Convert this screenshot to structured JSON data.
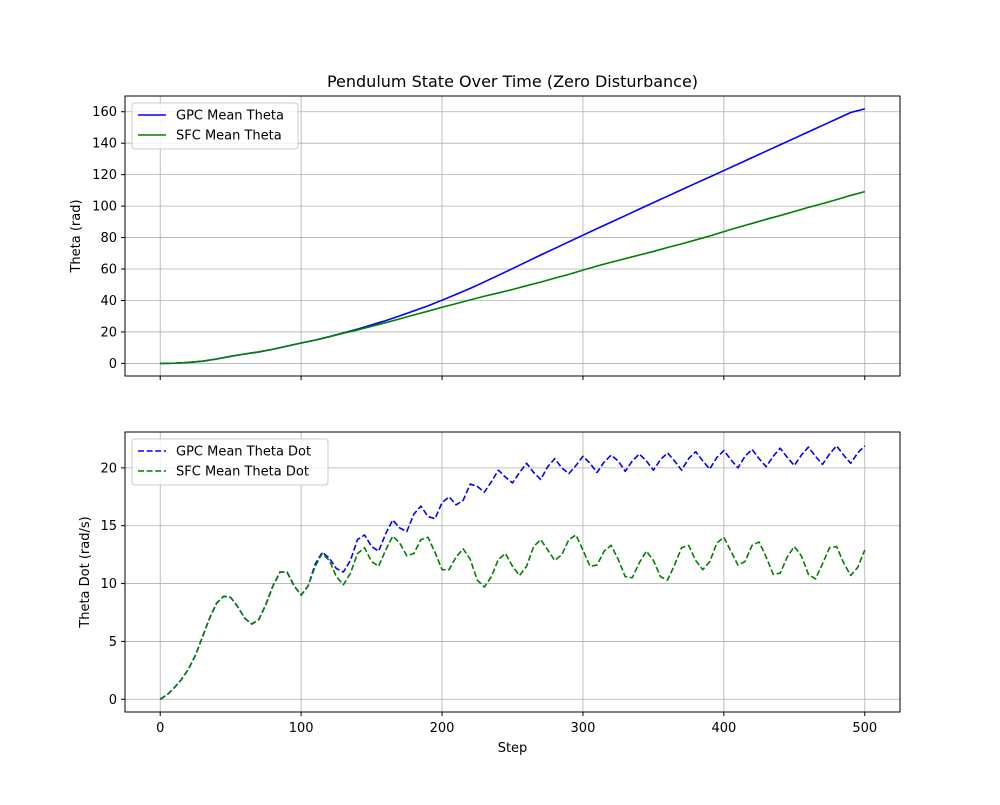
{
  "figure": {
    "title": "Pendulum State Over Time (Zero Disturbance)",
    "background": "#ffffff"
  },
  "colors": {
    "gpc": "#0000ff",
    "sfc": "#008000",
    "grid": "#b0b0b0",
    "axes": "#000000"
  },
  "chart_data": [
    {
      "type": "line",
      "title": "Pendulum State Over Time (Zero Disturbance)",
      "xlabel": "",
      "ylabel": "Theta (rad)",
      "xlim": [
        -25,
        525
      ],
      "ylim": [
        -8,
        170
      ],
      "x_ticks": [
        0,
        100,
        200,
        300,
        400,
        500
      ],
      "y_ticks": [
        0,
        20,
        40,
        60,
        80,
        100,
        120,
        140,
        160
      ],
      "show_x_tick_labels": false,
      "grid": true,
      "legend": "upper-left",
      "series": [
        {
          "name": "GPC Mean Theta",
          "style": "solid",
          "color": "#0000ff",
          "x": [
            0,
            10,
            20,
            30,
            40,
            50,
            60,
            70,
            80,
            90,
            100,
            110,
            120,
            130,
            140,
            150,
            160,
            170,
            180,
            190,
            200,
            210,
            220,
            230,
            240,
            250,
            260,
            270,
            280,
            290,
            300,
            310,
            320,
            330,
            340,
            350,
            360,
            370,
            380,
            390,
            400,
            410,
            420,
            430,
            440,
            450,
            460,
            470,
            480,
            490,
            500
          ],
          "y": [
            0,
            0.1,
            0.6,
            1.4,
            2.8,
            4.5,
            6.0,
            7.3,
            9.0,
            11.0,
            13.0,
            14.8,
            17.0,
            19.4,
            21.8,
            24.5,
            27.2,
            30.2,
            33.4,
            36.6,
            40.2,
            43.9,
            47.7,
            51.8,
            56.0,
            60.3,
            64.6,
            68.9,
            73.1,
            77.3,
            81.5,
            85.7,
            89.8,
            93.9,
            98.1,
            102.2,
            106.3,
            110.4,
            114.5,
            118.5,
            122.6,
            126.7,
            130.8,
            134.9,
            139.0,
            143.1,
            147.2,
            151.3,
            155.4,
            159.5,
            161.8
          ]
        },
        {
          "name": "SFC Mean Theta",
          "style": "solid",
          "color": "#008000",
          "x": [
            0,
            10,
            20,
            30,
            40,
            50,
            60,
            70,
            80,
            90,
            100,
            110,
            120,
            130,
            140,
            150,
            160,
            170,
            180,
            190,
            200,
            210,
            220,
            230,
            240,
            250,
            260,
            270,
            280,
            290,
            300,
            310,
            320,
            330,
            340,
            350,
            360,
            370,
            380,
            390,
            400,
            410,
            420,
            430,
            440,
            450,
            460,
            470,
            480,
            490,
            500
          ],
          "y": [
            0,
            0.1,
            0.6,
            1.4,
            2.8,
            4.5,
            6.0,
            7.3,
            9.0,
            11.0,
            13.0,
            14.8,
            17.0,
            19.2,
            21.3,
            23.6,
            25.9,
            28.3,
            30.8,
            33.2,
            35.7,
            38.0,
            40.4,
            42.7,
            44.8,
            47.0,
            49.4,
            51.7,
            54.2,
            56.6,
            59.3,
            61.9,
            64.3,
            66.6,
            68.9,
            71.2,
            73.7,
            76.0,
            78.5,
            81.0,
            83.8,
            86.5,
            89.0,
            91.6,
            94.0,
            96.6,
            99.2,
            101.6,
            104.1,
            106.8,
            109.2
          ]
        }
      ]
    },
    {
      "type": "line",
      "title": "",
      "xlabel": "Step",
      "ylabel": "Theta Dot (rad/s)",
      "xlim": [
        -25,
        525
      ],
      "ylim": [
        -1.1,
        23.1
      ],
      "x_ticks": [
        0,
        100,
        200,
        300,
        400,
        500
      ],
      "y_ticks": [
        0,
        5,
        10,
        15,
        20
      ],
      "show_x_tick_labels": true,
      "grid": true,
      "legend": "upper-left",
      "series": [
        {
          "name": "GPC Mean Theta Dot",
          "style": "dashed",
          "color": "#0000ff",
          "x": [
            0,
            5,
            10,
            15,
            20,
            25,
            30,
            35,
            40,
            45,
            50,
            55,
            60,
            65,
            70,
            75,
            80,
            85,
            90,
            95,
            100,
            105,
            110,
            115,
            120,
            125,
            130,
            135,
            140,
            145,
            150,
            155,
            160,
            165,
            170,
            175,
            180,
            185,
            190,
            195,
            200,
            205,
            210,
            215,
            220,
            225,
            230,
            235,
            240,
            245,
            250,
            255,
            260,
            265,
            270,
            275,
            280,
            285,
            290,
            295,
            300,
            305,
            310,
            315,
            320,
            325,
            330,
            335,
            340,
            345,
            350,
            355,
            360,
            365,
            370,
            375,
            380,
            385,
            390,
            395,
            400,
            405,
            410,
            415,
            420,
            425,
            430,
            435,
            440,
            445,
            450,
            455,
            460,
            465,
            470,
            475,
            480,
            485,
            490,
            495,
            500
          ],
          "y": [
            0,
            0.4,
            1.0,
            1.7,
            2.6,
            3.8,
            5.4,
            7.0,
            8.3,
            8.9,
            8.8,
            8.0,
            7.0,
            6.5,
            6.9,
            8.2,
            9.8,
            11.0,
            11.0,
            9.8,
            9.0,
            9.8,
            11.7,
            12.7,
            12.2,
            11.3,
            11.0,
            12.0,
            13.8,
            14.2,
            13.2,
            12.8,
            14.3,
            15.5,
            14.8,
            14.5,
            16.0,
            16.7,
            15.8,
            15.6,
            17.0,
            17.5,
            16.8,
            17.2,
            18.6,
            18.4,
            17.9,
            18.8,
            19.8,
            19.2,
            18.7,
            19.6,
            20.4,
            19.6,
            19.0,
            20.1,
            20.8,
            20.0,
            19.5,
            20.2,
            21.0,
            20.4,
            19.6,
            20.5,
            21.1,
            20.6,
            19.7,
            20.6,
            21.2,
            20.6,
            19.8,
            20.7,
            21.3,
            20.6,
            19.8,
            20.8,
            21.4,
            20.6,
            19.9,
            20.9,
            21.5,
            20.7,
            20.0,
            21.0,
            21.6,
            20.8,
            20.1,
            21.0,
            21.7,
            20.9,
            20.2,
            21.1,
            21.8,
            21.0,
            20.3,
            21.2,
            21.9,
            21.1,
            20.4,
            21.3,
            21.9
          ]
        },
        {
          "name": "SFC Mean Theta Dot",
          "style": "dashed",
          "color": "#008000",
          "x": [
            0,
            5,
            10,
            15,
            20,
            25,
            30,
            35,
            40,
            45,
            50,
            55,
            60,
            65,
            70,
            75,
            80,
            85,
            90,
            95,
            100,
            105,
            110,
            115,
            120,
            125,
            130,
            135,
            140,
            145,
            150,
            155,
            160,
            165,
            170,
            175,
            180,
            185,
            190,
            195,
            200,
            205,
            210,
            215,
            220,
            225,
            230,
            235,
            240,
            245,
            250,
            255,
            260,
            265,
            270,
            275,
            280,
            285,
            290,
            295,
            300,
            305,
            310,
            315,
            320,
            325,
            330,
            335,
            340,
            345,
            350,
            355,
            360,
            365,
            370,
            375,
            380,
            385,
            390,
            395,
            400,
            405,
            410,
            415,
            420,
            425,
            430,
            435,
            440,
            445,
            450,
            455,
            460,
            465,
            470,
            475,
            480,
            485,
            490,
            495,
            500
          ],
          "y": [
            0,
            0.4,
            1.0,
            1.7,
            2.6,
            3.8,
            5.4,
            7.0,
            8.3,
            8.9,
            8.8,
            8.0,
            7.0,
            6.5,
            6.9,
            8.2,
            9.8,
            11.0,
            11.0,
            9.8,
            9.0,
            9.8,
            11.5,
            12.6,
            12.0,
            10.6,
            9.9,
            10.9,
            12.6,
            13.1,
            11.9,
            11.5,
            12.9,
            14.1,
            13.5,
            12.4,
            12.6,
            13.8,
            14.0,
            12.7,
            11.2,
            11.2,
            12.3,
            13.0,
            12.1,
            10.3,
            9.7,
            10.6,
            12.1,
            12.6,
            11.5,
            10.7,
            11.5,
            13.2,
            13.8,
            12.9,
            12.0,
            12.5,
            13.8,
            14.2,
            12.9,
            11.5,
            11.6,
            12.8,
            13.3,
            12.1,
            10.6,
            10.5,
            11.8,
            12.8,
            12.0,
            10.6,
            10.3,
            11.6,
            13.1,
            13.3,
            12.0,
            11.2,
            11.9,
            13.5,
            14.0,
            12.8,
            11.6,
            11.9,
            13.3,
            13.6,
            12.3,
            10.8,
            10.9,
            12.3,
            13.2,
            12.4,
            10.8,
            10.4,
            11.7,
            13.1,
            13.2,
            11.8,
            10.7,
            11.4,
            12.9
          ]
        }
      ]
    }
  ]
}
